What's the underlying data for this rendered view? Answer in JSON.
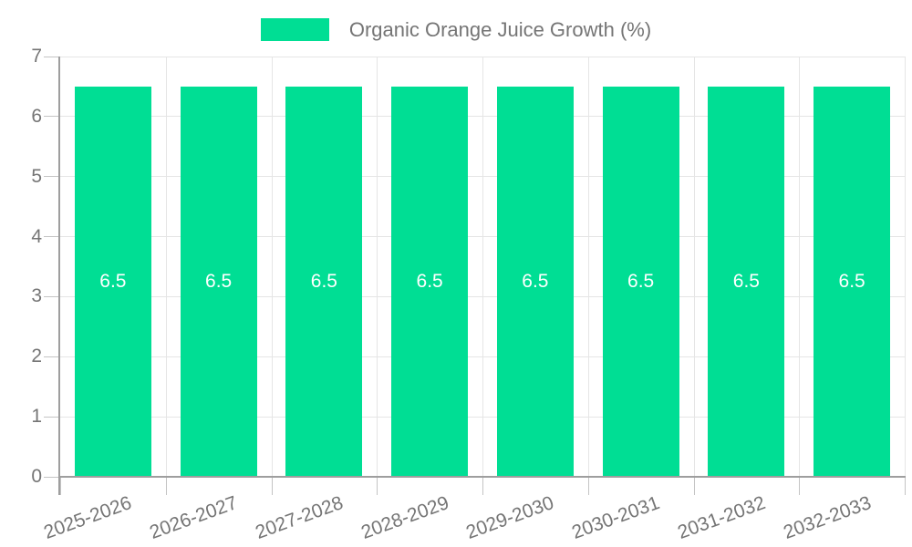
{
  "chart_data": {
    "type": "bar",
    "legend_label": "Organic Orange Juice Growth (%)",
    "legend_position": "top",
    "series": [
      {
        "name": "Organic Orange Juice Growth (%)",
        "values": [
          6.5,
          6.5,
          6.5,
          6.5,
          6.5,
          6.5,
          6.5,
          6.5
        ]
      }
    ],
    "categories": [
      "2025-2026",
      "2026-2027",
      "2027-2028",
      "2028-2029",
      "2029-2030",
      "2030-2031",
      "2031-2032",
      "2032-2033"
    ],
    "value_labels": [
      "6.5",
      "6.5",
      "6.5",
      "6.5",
      "6.5",
      "6.5",
      "6.5",
      "6.5"
    ],
    "xlabel": "",
    "ylabel": "",
    "ylim": [
      0,
      7
    ],
    "yticks": [
      0,
      1,
      2,
      3,
      4,
      5,
      6,
      7
    ],
    "ytick_labels": [
      "0",
      "1",
      "2",
      "3",
      "4",
      "5",
      "6",
      "7"
    ],
    "grid": true,
    "colors": {
      "bar": "#00DE94",
      "value_label": "#FFFFFF",
      "axis_text": "#757575",
      "grid_line": "#E5E5E5",
      "tick_line": "#C4C4C4",
      "axis_line": "#9E9E9E",
      "background": "#FFFFFF"
    }
  }
}
